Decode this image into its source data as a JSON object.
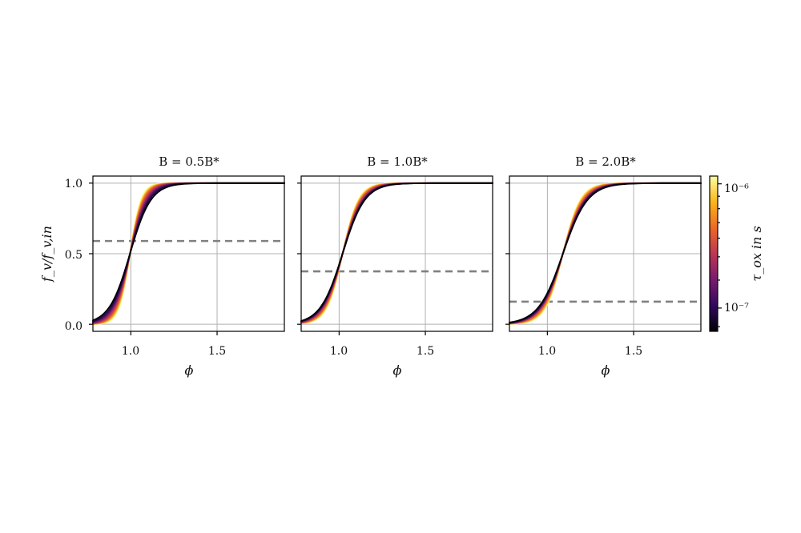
{
  "chart_data": [
    {
      "type": "line",
      "title": "B = 0.5B*",
      "xlabel": "ϕ",
      "ylabel": "f_v/f_v,in",
      "xlim": [
        0.78,
        1.89
      ],
      "ylim": [
        -0.05,
        1.05
      ],
      "xticks": [
        "1.0",
        "1.5"
      ],
      "yticks": [
        "0.0",
        "0.5",
        "1.0"
      ],
      "grid": true,
      "threshold": 0.59,
      "center": 0.995,
      "series": [
        {
          "tau_fraction": 1.0,
          "steepness": 32
        },
        {
          "tau_fraction": 0.875,
          "steepness": 29
        },
        {
          "tau_fraction": 0.75,
          "steepness": 27
        },
        {
          "tau_fraction": 0.625,
          "steepness": 25
        },
        {
          "tau_fraction": 0.5,
          "steepness": 23
        },
        {
          "tau_fraction": 0.375,
          "steepness": 21
        },
        {
          "tau_fraction": 0.25,
          "steepness": 19.5
        },
        {
          "tau_fraction": 0.125,
          "steepness": 18
        },
        {
          "tau_fraction": 0.0,
          "steepness": 16.5
        }
      ]
    },
    {
      "type": "line",
      "title": "B = 1.0B*",
      "xlabel": "ϕ",
      "ylabel": "",
      "xlim": [
        0.78,
        1.89
      ],
      "ylim": [
        -0.05,
        1.05
      ],
      "xticks": [
        "1.0",
        "1.5"
      ],
      "yticks": [],
      "grid": true,
      "threshold": 0.375,
      "center": 1.02,
      "series": [
        {
          "tau_fraction": 1.0,
          "steepness": 22
        },
        {
          "tau_fraction": 0.875,
          "steepness": 21
        },
        {
          "tau_fraction": 0.75,
          "steepness": 20
        },
        {
          "tau_fraction": 0.625,
          "steepness": 19
        },
        {
          "tau_fraction": 0.5,
          "steepness": 18
        },
        {
          "tau_fraction": 0.375,
          "steepness": 17
        },
        {
          "tau_fraction": 0.25,
          "steepness": 16.5
        },
        {
          "tau_fraction": 0.125,
          "steepness": 16
        },
        {
          "tau_fraction": 0.0,
          "steepness": 15.5
        }
      ]
    },
    {
      "type": "line",
      "title": "B = 2.0B*",
      "xlabel": "ϕ",
      "ylabel": "",
      "xlim": [
        0.78,
        1.89
      ],
      "ylim": [
        -0.05,
        1.05
      ],
      "xticks": [
        "1.0",
        "1.5"
      ],
      "yticks": [],
      "grid": true,
      "threshold": 0.16,
      "center": 1.09,
      "series": [
        {
          "tau_fraction": 1.0,
          "steepness": 20
        },
        {
          "tau_fraction": 0.875,
          "steepness": 19
        },
        {
          "tau_fraction": 0.75,
          "steepness": 18
        },
        {
          "tau_fraction": 0.625,
          "steepness": 17
        },
        {
          "tau_fraction": 0.5,
          "steepness": 16
        },
        {
          "tau_fraction": 0.375,
          "steepness": 15.5
        },
        {
          "tau_fraction": 0.25,
          "steepness": 15
        },
        {
          "tau_fraction": 0.125,
          "steepness": 14.5
        },
        {
          "tau_fraction": 0.0,
          "steepness": 14
        }
      ]
    }
  ],
  "colorbar": {
    "label": "τ_ox in s",
    "tick_labels": [
      "10⁻⁶",
      "10⁻⁷"
    ],
    "tick_fractions": [
      0.95,
      0.15
    ],
    "colors": [
      "#000004",
      "#320a5e",
      "#781c6d",
      "#bc3754",
      "#ed6925",
      "#fbb61a",
      "#fcffa4"
    ]
  }
}
